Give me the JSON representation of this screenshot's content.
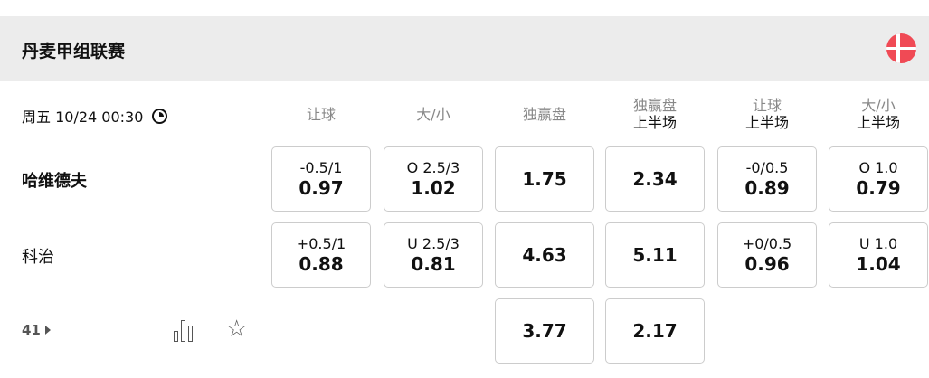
{
  "league": {
    "title": "丹麦甲组联赛",
    "flag": "denmark-flag",
    "flag_color": "#f04a55"
  },
  "match": {
    "time": "周五 10/24 00:30",
    "more_count": "41"
  },
  "columns": [
    {
      "title": "让球",
      "sub": ""
    },
    {
      "title": "大/小",
      "sub": ""
    },
    {
      "title": "独赢盘",
      "sub": ""
    },
    {
      "title": "独赢盘",
      "sub": "上半场"
    },
    {
      "title": "让球",
      "sub": "上半场"
    },
    {
      "title": "大/小",
      "sub": "上半场"
    }
  ],
  "teams": [
    {
      "name": "哈维德夫",
      "odds": [
        {
          "line": "-0.5/1",
          "odd": "0.97"
        },
        {
          "line": "O 2.5/3",
          "odd": "1.02"
        },
        {
          "line": "",
          "odd": "1.75"
        },
        {
          "line": "",
          "odd": "2.34"
        },
        {
          "line": "-0/0.5",
          "odd": "0.89"
        },
        {
          "line": "O 1.0",
          "odd": "0.79"
        }
      ]
    },
    {
      "name": "科治",
      "odds": [
        {
          "line": "+0.5/1",
          "odd": "0.88"
        },
        {
          "line": "U 2.5/3",
          "odd": "0.81"
        },
        {
          "line": "",
          "odd": "4.63"
        },
        {
          "line": "",
          "odd": "5.11"
        },
        {
          "line": "+0/0.5",
          "odd": "0.96"
        },
        {
          "line": "U 1.0",
          "odd": "1.04"
        }
      ]
    }
  ],
  "draw": {
    "odds": [
      {
        "odd": "3.77"
      },
      {
        "odd": "2.17"
      }
    ]
  }
}
